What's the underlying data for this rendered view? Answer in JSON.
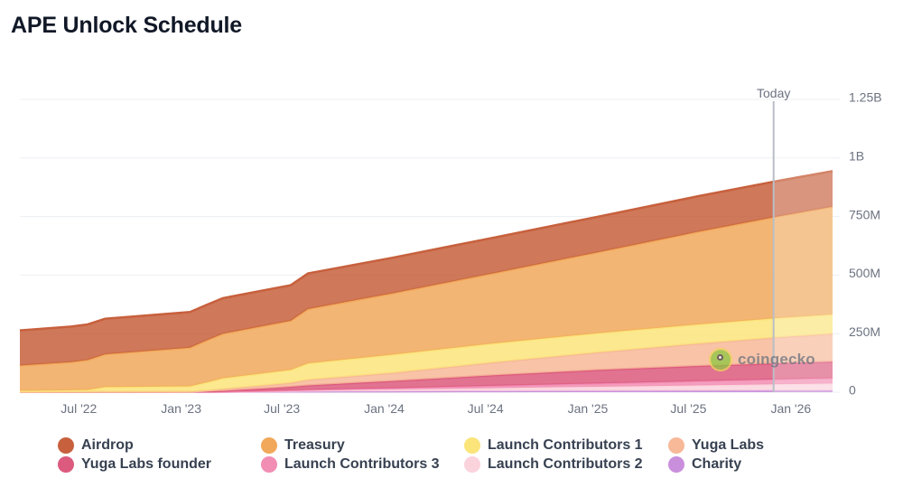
{
  "chart_data": {
    "type": "area",
    "stacked": true,
    "title": "APE Unlock Schedule",
    "x_ticks": [
      "Jul '22",
      "Jan '23",
      "Jul '23",
      "Jan '24",
      "Jul '24",
      "Jan '25",
      "Jul '25",
      "Jan '26"
    ],
    "y_ticks": [
      "0",
      "250M",
      "500M",
      "750M",
      "1B",
      "1.25B"
    ],
    "ylim": [
      0,
      1250000000
    ],
    "xlim": [
      "2022-03-17",
      "2026-03-17"
    ],
    "grid": true,
    "legend_position": "bottom",
    "today_label": "Today",
    "today_date": "2025-12-01",
    "x": [
      "2022-03-17",
      "2022-06-17",
      "2022-07-17",
      "2022-08-17",
      "2023-01-17",
      "2023-02-17",
      "2023-03-17",
      "2023-06-17",
      "2023-07-17",
      "2023-08-17",
      "2024-01-17",
      "2024-07-17",
      "2025-01-17",
      "2025-07-17",
      "2025-12-01",
      "2026-03-17"
    ],
    "series": [
      {
        "name": "Charity",
        "color": "#c98fdc",
        "values": [
          1000000,
          1400000,
          1600000,
          1700000,
          2200000,
          2300000,
          2500000,
          2900000,
          3000000,
          3100000,
          3600000,
          4400000,
          5300000,
          6100000,
          6700000,
          7000000
        ]
      },
      {
        "name": "Launch Contributors 2",
        "color": "#fbd3dd",
        "values": [
          0,
          0,
          0,
          0,
          0,
          0,
          0,
          2000000,
          3000000,
          4000000,
          8000000,
          13000000,
          18000000,
          23000000,
          27000000,
          30000000
        ]
      },
      {
        "name": "Launch Contributors 3",
        "color": "#f28db3",
        "values": [
          0,
          0,
          0,
          0,
          0,
          0,
          0,
          1500000,
          2000000,
          3000000,
          6000000,
          10000000,
          14000000,
          18000000,
          21000000,
          23000000
        ]
      },
      {
        "name": "Yuga Labs founder",
        "color": "#dc5a7e",
        "values": [
          0,
          0,
          0,
          0,
          0,
          1000000,
          3000000,
          12000000,
          15000000,
          19000000,
          30000000,
          45000000,
          57000000,
          65000000,
          68000000,
          70000000
        ]
      },
      {
        "name": "Yuga Labs",
        "color": "#f7b998",
        "values": [
          0,
          0,
          0,
          0,
          0,
          4000000,
          8000000,
          15000000,
          17000000,
          24000000,
          35000000,
          55000000,
          75000000,
          95000000,
          110000000,
          120000000
        ]
      },
      {
        "name": "Launch Contributors 1",
        "color": "#fbe47a",
        "values": [
          5000000,
          7000000,
          8000000,
          20000000,
          23000000,
          35000000,
          46000000,
          53000000,
          55000000,
          70000000,
          78000000,
          81000000,
          82000000,
          82000000,
          82000000,
          82000000
        ]
      },
      {
        "name": "Treasury",
        "color": "#f1a85a",
        "values": [
          108000000,
          120000000,
          128000000,
          140000000,
          165000000,
          180000000,
          190000000,
          205000000,
          210000000,
          232000000,
          262000000,
          300000000,
          345000000,
          395000000,
          432000000,
          460000000
        ]
      },
      {
        "name": "Airdrop",
        "color": "#c7603d",
        "values": [
          150000000,
          152000000,
          152000000,
          152000000,
          152000000,
          152000000,
          152000000,
          152000000,
          152000000,
          152000000,
          152000000,
          152000000,
          152000000,
          152000000,
          152000000,
          152000000
        ]
      }
    ],
    "legend": [
      {
        "name": "Airdrop",
        "color": "#c7603d"
      },
      {
        "name": "Treasury",
        "color": "#f1a85a"
      },
      {
        "name": "Launch Contributors 1",
        "color": "#fbe47a"
      },
      {
        "name": "Yuga Labs",
        "color": "#f7b998"
      },
      {
        "name": "Yuga Labs founder",
        "color": "#dc5a7e"
      },
      {
        "name": "Launch Contributors 3",
        "color": "#f28db3"
      },
      {
        "name": "Launch Contributors 2",
        "color": "#fbd3dd"
      },
      {
        "name": "Charity",
        "color": "#c98fdc"
      }
    ]
  },
  "watermark": {
    "text": "coingecko",
    "icon": "coingecko-logo-icon"
  }
}
